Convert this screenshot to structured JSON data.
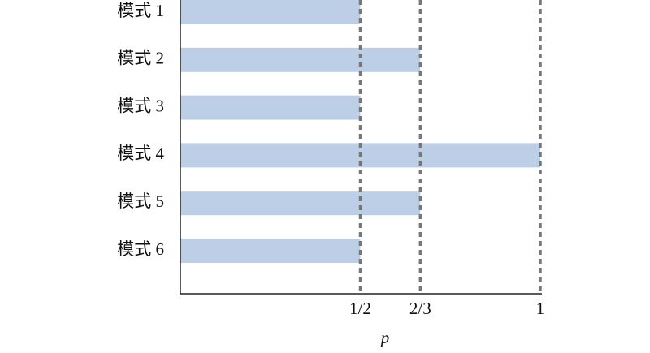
{
  "chart_data": {
    "type": "bar",
    "orientation": "horizontal",
    "categories": [
      "模式 1",
      "模式 2",
      "模式 3",
      "模式 4",
      "模式 5",
      "模式 6"
    ],
    "values": [
      0.5,
      0.6667,
      0.5,
      1,
      0.6667,
      0.5
    ],
    "color": "#bccfe7",
    "xlim": [
      0,
      1
    ],
    "xticks": [
      {
        "value": 0.5,
        "label": "1/2"
      },
      {
        "value": 0.6667,
        "label": "2/3"
      },
      1
    ],
    "xlabel": "p",
    "grid": true
  }
}
